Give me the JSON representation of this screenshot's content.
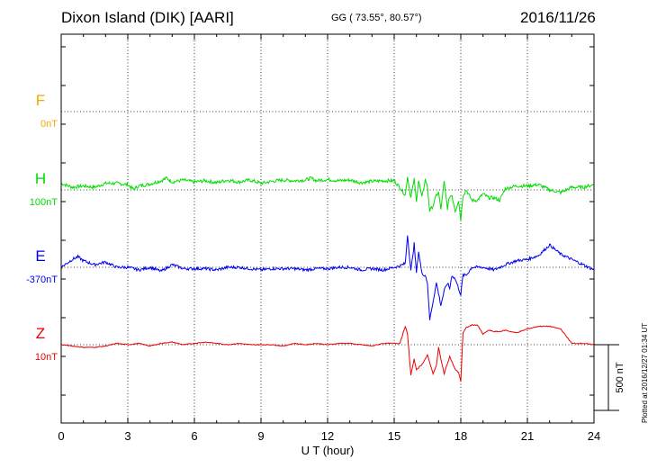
{
  "header": {
    "station": "Dixon Island (DIK)  [AARI]",
    "coords": "GG ( 73.55°,  80.57°)",
    "date": "2016/11/26"
  },
  "plotted_note": "Plotted at 2016/12/27 01:34 UT",
  "colors": {
    "F": "#f2a900",
    "H": "#00dd00",
    "E": "#0000ee",
    "Z": "#ee0000",
    "axis": "#000000",
    "grid": "#000000"
  },
  "chart_data": {
    "type": "line",
    "xlabel": "U T (hour)",
    "xlim": [
      0,
      24
    ],
    "x_ticks": [
      0,
      3,
      6,
      9,
      12,
      15,
      18,
      21,
      24
    ],
    "y_units": "nT",
    "scale_bar_label": "500 nT",
    "scale_bar_nT": 500,
    "grid": true,
    "series": [
      {
        "name": "F",
        "baseline_label": "0nT",
        "x": [],
        "y": []
      },
      {
        "name": "H",
        "baseline_label": "100nT",
        "x": [
          0,
          0.5,
          1,
          1.5,
          2,
          2.5,
          3,
          3.25,
          3.5,
          4,
          4.5,
          4.75,
          5,
          5.5,
          6,
          6.5,
          7,
          7.5,
          8,
          8.5,
          9,
          9.5,
          10,
          10.5,
          11,
          11.25,
          11.5,
          12,
          12.5,
          13,
          13.5,
          14,
          14.5,
          15,
          15.25,
          15.5,
          15.6,
          15.75,
          15.9,
          16,
          16.1,
          16.25,
          16.4,
          16.5,
          16.6,
          16.75,
          16.9,
          17,
          17.1,
          17.25,
          17.4,
          17.5,
          17.6,
          17.75,
          17.9,
          18,
          18.1,
          18.25,
          18.5,
          18.75,
          19,
          19.25,
          19.5,
          19.75,
          20,
          20.5,
          21,
          21.5,
          22,
          22.5,
          23,
          23.5,
          24
        ],
        "y": [
          50,
          20,
          30,
          20,
          50,
          50,
          40,
          5,
          30,
          45,
          70,
          90,
          60,
          75,
          60,
          70,
          55,
          75,
          60,
          75,
          50,
          65,
          75,
          70,
          75,
          90,
          70,
          80,
          70,
          75,
          55,
          65,
          70,
          70,
          20,
          -40,
          105,
          -60,
          80,
          -80,
          70,
          -60,
          80,
          20,
          -160,
          -120,
          -40,
          -20,
          -150,
          60,
          -140,
          -50,
          -40,
          -160,
          -80,
          -230,
          -40,
          0,
          -80,
          -80,
          -30,
          -60,
          -60,
          -80,
          10,
          30,
          30,
          40,
          0,
          -20,
          20,
          20,
          40
        ]
      },
      {
        "name": "E",
        "baseline_label": "-370nT",
        "x": [
          0,
          0.5,
          0.75,
          1,
          1.5,
          2,
          2.5,
          3,
          3.5,
          4,
          4.5,
          5,
          5.5,
          6,
          6.5,
          7,
          7.5,
          8,
          8.5,
          9,
          9.5,
          10,
          10.5,
          11,
          11.5,
          12,
          12.5,
          13,
          13.5,
          14,
          14.5,
          15,
          15.25,
          15.5,
          15.6,
          15.75,
          15.9,
          16,
          16.1,
          16.25,
          16.4,
          16.5,
          16.6,
          16.75,
          16.9,
          17,
          17.1,
          17.25,
          17.4,
          17.5,
          17.6,
          17.75,
          17.9,
          18,
          18.1,
          18.25,
          18.5,
          19,
          19.5,
          20,
          20.5,
          21,
          21.5,
          22,
          22.5,
          23,
          23.5,
          24
        ],
        "y": [
          0,
          60,
          80,
          50,
          20,
          40,
          0,
          0,
          -20,
          0,
          -30,
          20,
          -10,
          -10,
          -10,
          -20,
          0,
          0,
          -10,
          -20,
          -10,
          -10,
          -10,
          -20,
          -10,
          -10,
          0,
          0,
          -20,
          -10,
          -20,
          0,
          10,
          30,
          250,
          -30,
          180,
          -40,
          120,
          -50,
          -60,
          -120,
          -400,
          -260,
          -120,
          -200,
          -290,
          -180,
          -120,
          -160,
          -60,
          -90,
          -160,
          -210,
          -60,
          -60,
          0,
          0,
          -20,
          20,
          50,
          60,
          90,
          170,
          100,
          60,
          20,
          -20
        ]
      },
      {
        "name": "Z",
        "baseline_label": "10nT",
        "x": [
          0,
          0.5,
          1,
          1.5,
          2,
          2.5,
          3,
          3.5,
          4,
          4.5,
          5,
          5.5,
          6,
          6.5,
          7,
          7.5,
          8,
          8.5,
          9,
          9.5,
          10,
          10.5,
          11,
          11.5,
          12,
          12.5,
          13,
          13.5,
          14,
          14.5,
          15,
          15.25,
          15.5,
          15.6,
          15.75,
          15.9,
          16,
          16.25,
          16.5,
          16.75,
          16.9,
          17,
          17.1,
          17.25,
          17.5,
          17.75,
          17.9,
          18,
          18.1,
          18.25,
          18.5,
          18.75,
          19,
          19.25,
          19.5,
          19.75,
          20,
          20.5,
          21,
          21.5,
          22,
          22.5,
          23,
          23.5,
          24
        ],
        "y": [
          0,
          -10,
          -20,
          -20,
          -10,
          10,
          0,
          10,
          -10,
          10,
          20,
          0,
          10,
          20,
          10,
          0,
          10,
          0,
          0,
          0,
          -10,
          10,
          0,
          10,
          0,
          10,
          10,
          0,
          -10,
          10,
          10,
          10,
          140,
          80,
          -230,
          -110,
          -190,
          -150,
          -80,
          -220,
          -160,
          -20,
          -110,
          -220,
          -90,
          -190,
          -210,
          -280,
          90,
          130,
          150,
          150,
          80,
          110,
          100,
          100,
          110,
          90,
          120,
          140,
          140,
          120,
          10,
          10,
          0
        ]
      }
    ]
  }
}
